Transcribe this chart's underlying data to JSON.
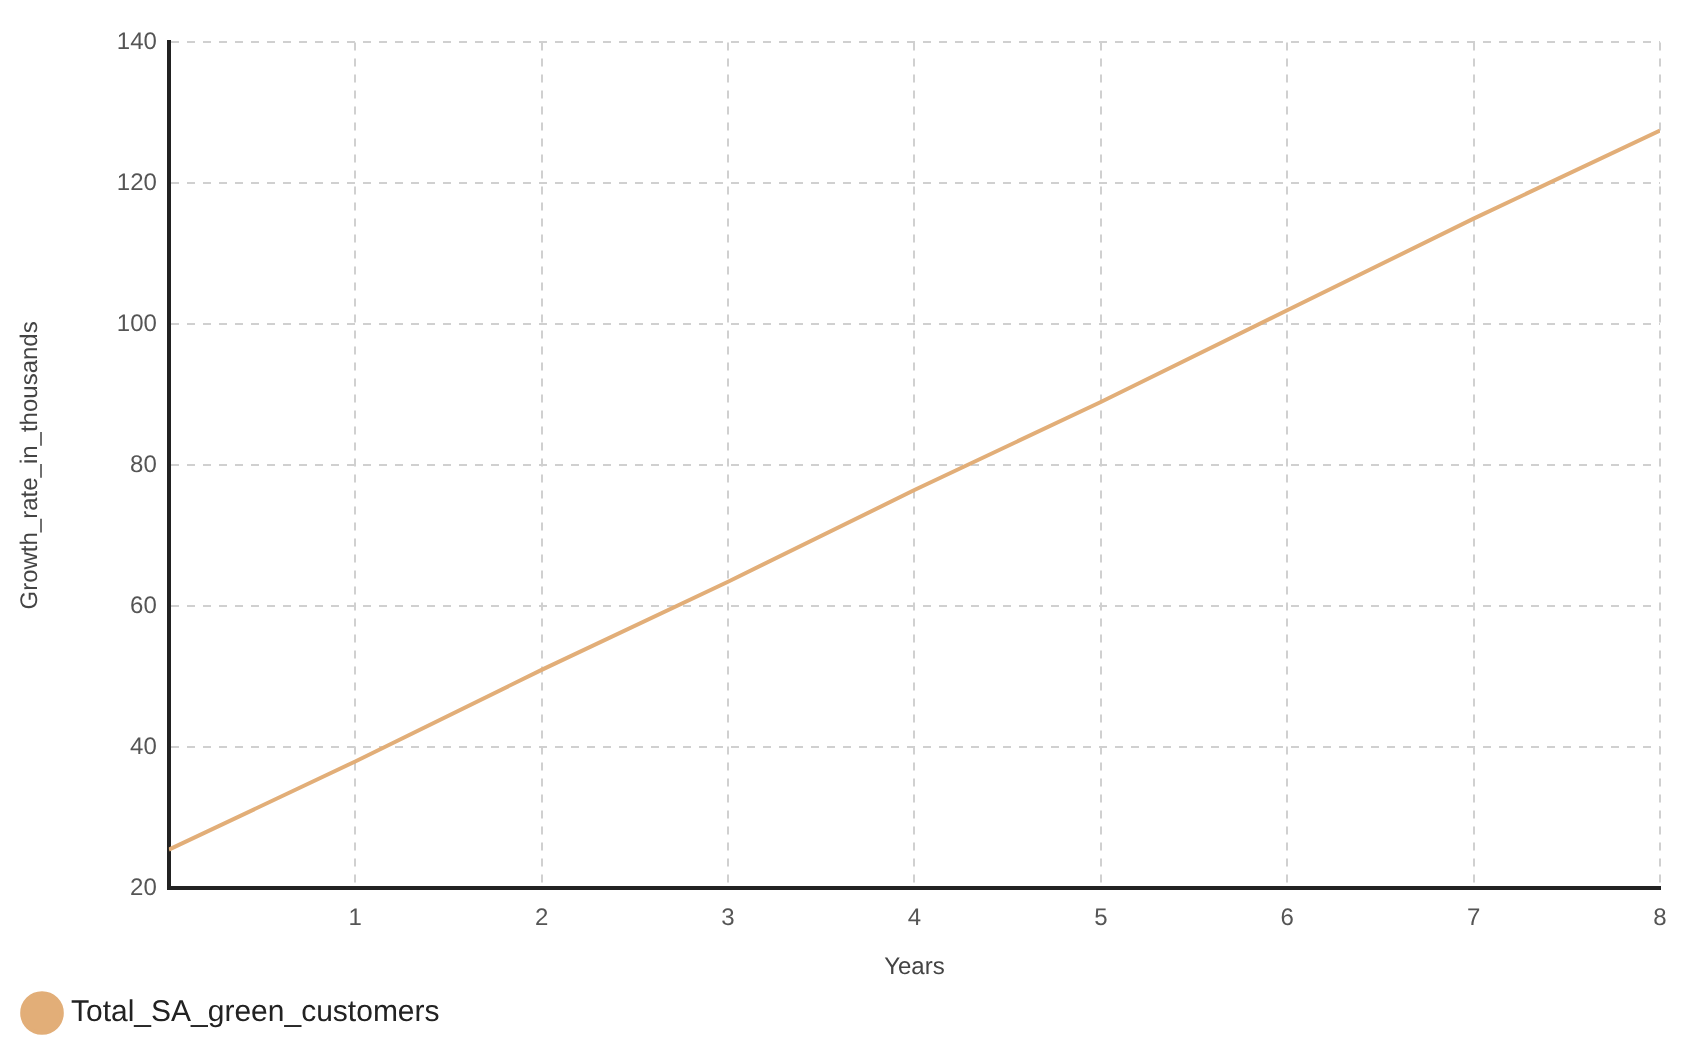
{
  "chart_data": {
    "type": "line",
    "xlabel": "Years",
    "ylabel": "Growth_rate_in_thousands",
    "x": [
      0,
      1,
      2,
      3,
      4,
      5,
      6,
      7,
      8
    ],
    "series": [
      {
        "name": "Total_SA_green_customers",
        "color": "#e2ae78",
        "values": [
          25.5,
          38,
          51,
          63.5,
          76.5,
          89,
          102,
          115,
          127.5
        ]
      }
    ],
    "xlim": [
      0,
      8
    ],
    "xticks": [
      1,
      2,
      3,
      4,
      5,
      6,
      7,
      8
    ],
    "ylim": [
      20,
      140
    ],
    "yticks": [
      20,
      40,
      60,
      80,
      100,
      120,
      140
    ],
    "grid": true,
    "legend": "bottom left",
    "marker": "none",
    "line_style": "solid"
  }
}
